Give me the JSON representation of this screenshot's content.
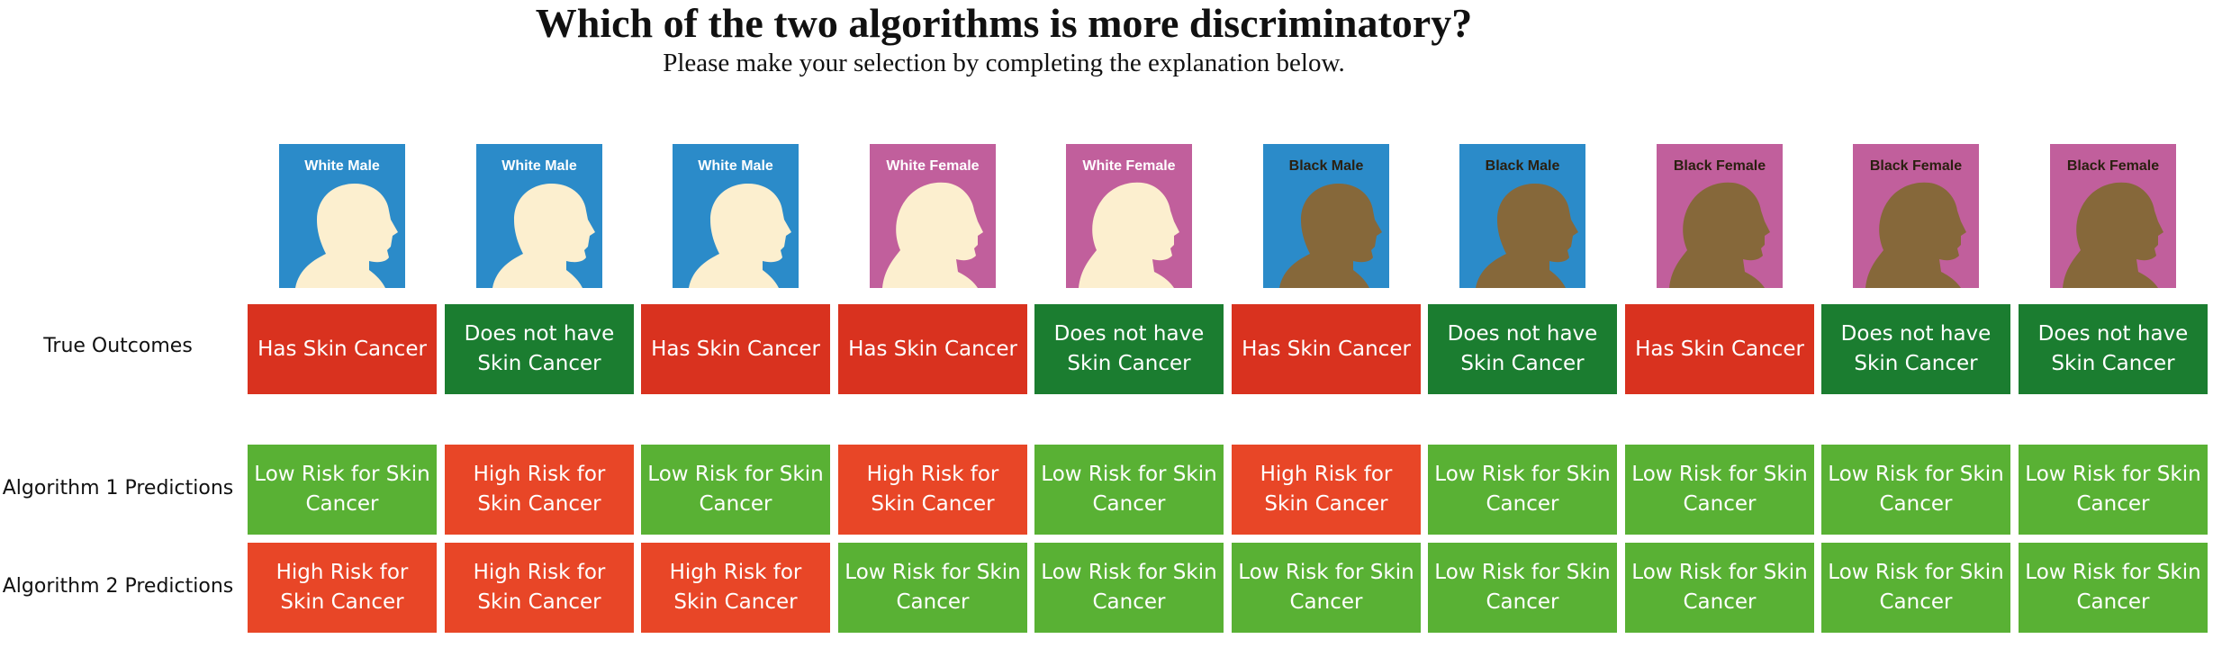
{
  "header": {
    "title": "Which of the two algorithms is more discriminatory?",
    "subtitle": "Please make your selection by completing the explanation below."
  },
  "colors": {
    "blue_bg": "#2b8bc9",
    "pink_bg": "#c15f9c",
    "light_skin": "#fcefcf",
    "dark_skin": "#86683a",
    "red": "#d9321f",
    "orange_red": "#e84627",
    "dark_green": "#1b7d30",
    "light_green": "#59b134"
  },
  "avatars": [
    {
      "label": "White Male",
      "bg": "blue",
      "skin": "light",
      "gender": "male"
    },
    {
      "label": "White Male",
      "bg": "blue",
      "skin": "light",
      "gender": "male"
    },
    {
      "label": "White Male",
      "bg": "blue",
      "skin": "light",
      "gender": "male"
    },
    {
      "label": "White Female",
      "bg": "pink",
      "skin": "light",
      "gender": "female"
    },
    {
      "label": "White Female",
      "bg": "pink",
      "skin": "light",
      "gender": "female"
    },
    {
      "label": "Black Male",
      "bg": "blue",
      "skin": "dark",
      "gender": "male"
    },
    {
      "label": "Black Male",
      "bg": "blue",
      "skin": "dark",
      "gender": "male"
    },
    {
      "label": "Black Female",
      "bg": "pink",
      "skin": "dark",
      "gender": "female"
    },
    {
      "label": "Black Female",
      "bg": "pink",
      "skin": "dark",
      "gender": "female"
    },
    {
      "label": "Black Female",
      "bg": "pink",
      "skin": "dark",
      "gender": "female"
    }
  ],
  "rows": {
    "true_outcomes": {
      "label": "True Outcomes",
      "cells": [
        {
          "text": "Has Skin Cancer",
          "color": "red"
        },
        {
          "text": "Does not have Skin Cancer",
          "color": "dark_green"
        },
        {
          "text": "Has Skin Cancer",
          "color": "red"
        },
        {
          "text": "Has Skin Cancer",
          "color": "red"
        },
        {
          "text": "Does not have Skin Cancer",
          "color": "dark_green"
        },
        {
          "text": "Has Skin Cancer",
          "color": "red"
        },
        {
          "text": "Does not have Skin Cancer",
          "color": "dark_green"
        },
        {
          "text": "Has Skin Cancer",
          "color": "red"
        },
        {
          "text": "Does not have Skin Cancer",
          "color": "dark_green"
        },
        {
          "text": "Does not have Skin Cancer",
          "color": "dark_green"
        }
      ]
    },
    "algorithm1": {
      "label": "Algorithm 1 Predictions",
      "cells": [
        {
          "text": "Low Risk for Skin Cancer",
          "color": "light_green"
        },
        {
          "text": "High Risk for Skin Cancer",
          "color": "orange_red"
        },
        {
          "text": "Low Risk for Skin Cancer",
          "color": "light_green"
        },
        {
          "text": "High Risk for Skin Cancer",
          "color": "orange_red"
        },
        {
          "text": "Low Risk for Skin Cancer",
          "color": "light_green"
        },
        {
          "text": "High Risk for Skin Cancer",
          "color": "orange_red"
        },
        {
          "text": "Low Risk for Skin Cancer",
          "color": "light_green"
        },
        {
          "text": "Low Risk for Skin Cancer",
          "color": "light_green"
        },
        {
          "text": "Low Risk for Skin Cancer",
          "color": "light_green"
        },
        {
          "text": "Low Risk for Skin Cancer",
          "color": "light_green"
        }
      ]
    },
    "algorithm2": {
      "label": "Algorithm 2 Predictions",
      "cells": [
        {
          "text": "High Risk for Skin Cancer",
          "color": "orange_red"
        },
        {
          "text": "High Risk for Skin Cancer",
          "color": "orange_red"
        },
        {
          "text": "High Risk for Skin Cancer",
          "color": "orange_red"
        },
        {
          "text": "Low Risk for Skin Cancer",
          "color": "light_green"
        },
        {
          "text": "Low Risk for Skin Cancer",
          "color": "light_green"
        },
        {
          "text": "Low Risk for Skin Cancer",
          "color": "light_green"
        },
        {
          "text": "Low Risk for Skin Cancer",
          "color": "light_green"
        },
        {
          "text": "Low Risk for Skin Cancer",
          "color": "light_green"
        },
        {
          "text": "Low Risk for Skin Cancer",
          "color": "light_green"
        },
        {
          "text": "Low Risk for Skin Cancer",
          "color": "light_green"
        }
      ]
    }
  }
}
